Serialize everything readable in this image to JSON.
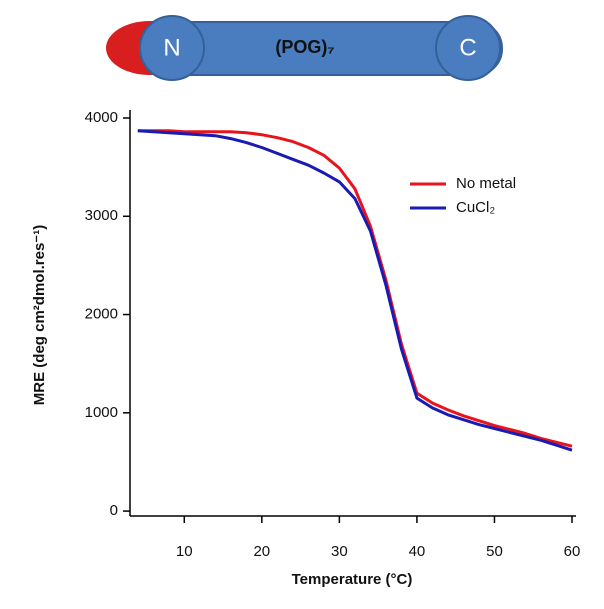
{
  "diagram": {
    "title": "(POG)₇",
    "n_label": "N",
    "c_label": "C"
  },
  "chart_data": {
    "type": "line",
    "x_label": "Temperature (°C)",
    "y_label": "MRE (deg cm²dmol.res⁻¹)",
    "x": [
      4,
      6,
      8,
      10,
      12,
      14,
      16,
      18,
      20,
      22,
      24,
      26,
      28,
      30,
      32,
      34,
      36,
      38,
      40,
      42,
      44,
      46,
      48,
      50,
      52,
      54,
      56,
      58,
      60
    ],
    "series": [
      {
        "name": "No metal",
        "color": "#e8141c",
        "values": [
          3870,
          3870,
          3870,
          3860,
          3860,
          3860,
          3860,
          3850,
          3830,
          3800,
          3760,
          3700,
          3620,
          3490,
          3280,
          2900,
          2350,
          1700,
          1200,
          1100,
          1030,
          970,
          920,
          870,
          830,
          790,
          740,
          700,
          660
        ]
      },
      {
        "name": "CuCl₂",
        "color": "#1a1ab4",
        "values": [
          3870,
          3860,
          3850,
          3840,
          3830,
          3820,
          3790,
          3750,
          3700,
          3640,
          3580,
          3520,
          3440,
          3350,
          3180,
          2850,
          2300,
          1650,
          1150,
          1050,
          980,
          930,
          880,
          840,
          800,
          760,
          720,
          670,
          620
        ]
      }
    ],
    "xlim": [
      3,
      60
    ],
    "ylim": [
      -50,
      4000
    ],
    "xticks": [
      10,
      20,
      30,
      40,
      50,
      60
    ],
    "yticks": [
      0,
      1000,
      2000,
      3000,
      4000
    ],
    "grid": false
  }
}
